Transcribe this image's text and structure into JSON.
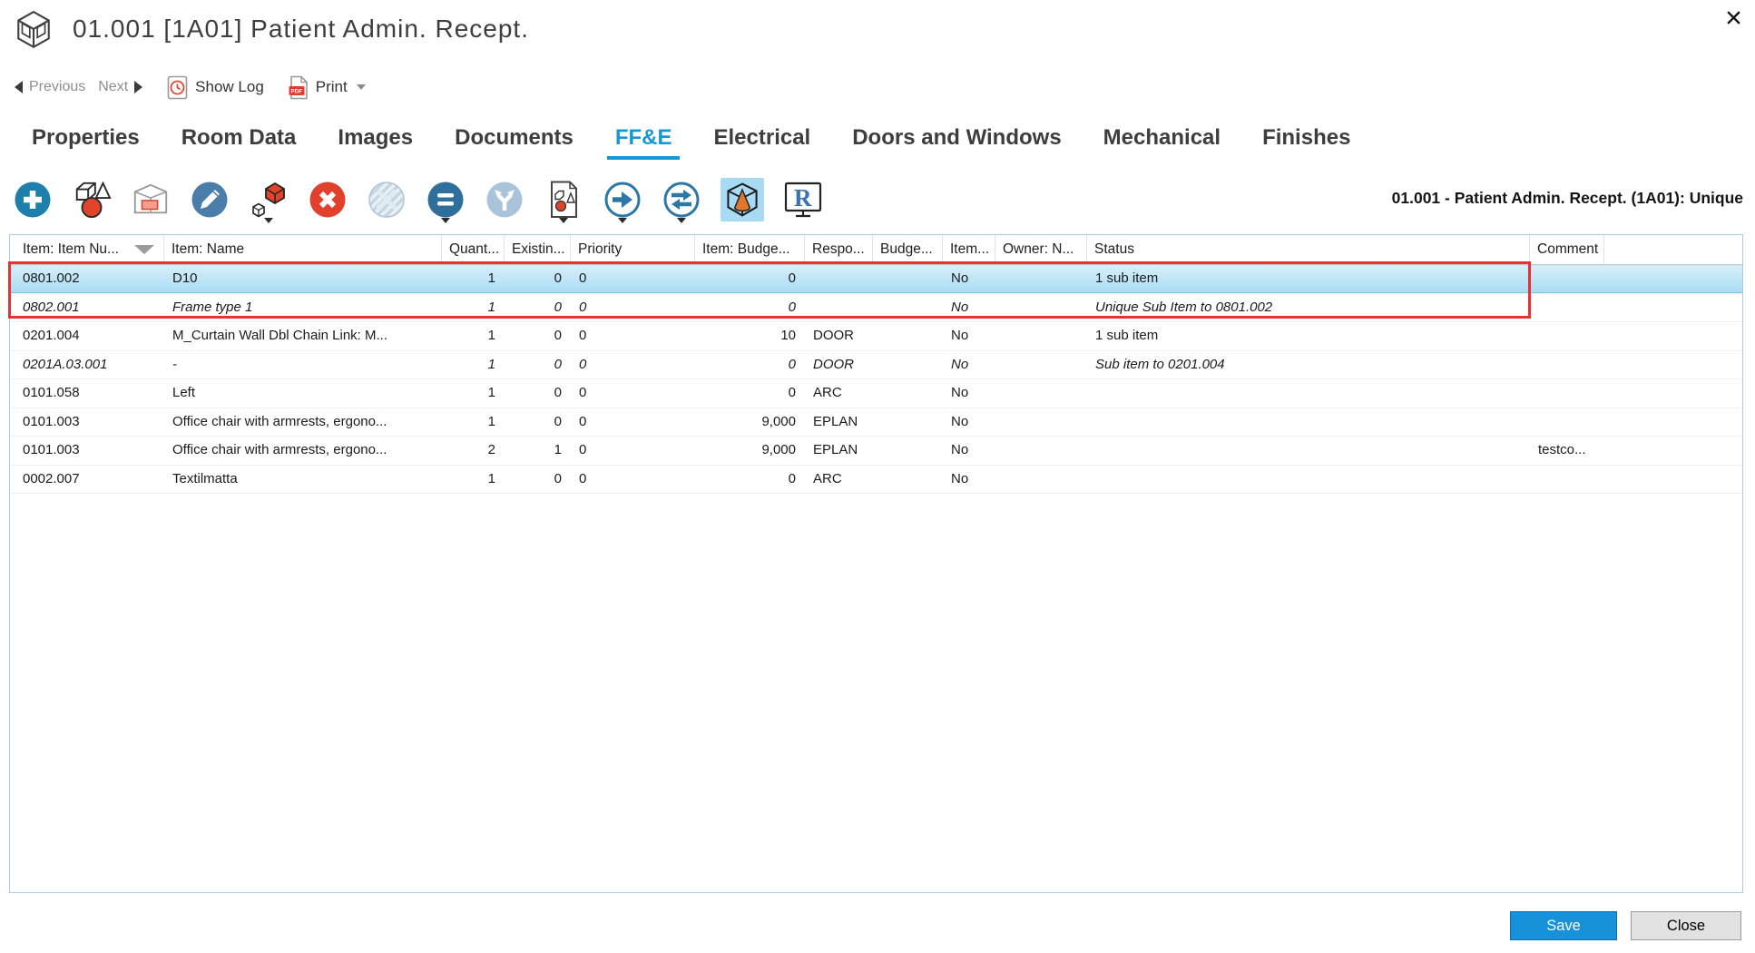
{
  "window": {
    "title": "01.001 [1A01] Patient Admin. Recept."
  },
  "nav": {
    "previous_label": "Previous",
    "next_label": "Next",
    "show_log_label": "Show Log",
    "print_label": "Print"
  },
  "tabs": [
    {
      "label": "Properties",
      "active": false
    },
    {
      "label": "Room Data",
      "active": false
    },
    {
      "label": "Images",
      "active": false
    },
    {
      "label": "Documents",
      "active": false
    },
    {
      "label": "FF&E",
      "active": true
    },
    {
      "label": "Electrical",
      "active": false
    },
    {
      "label": "Doors and Windows",
      "active": false
    },
    {
      "label": "Mechanical",
      "active": false
    },
    {
      "label": "Finishes",
      "active": false
    }
  ],
  "toolbar": {
    "icons": [
      "add-icon",
      "library-shapes-icon",
      "package-icon",
      "edit-icon",
      "copy-sub-item-icon",
      "delete-icon",
      "sphere-hatched-icon",
      "equal-icon",
      "branch-icon",
      "document-shapes-icon",
      "move-next-icon",
      "transfer-icon",
      "view-3d-icon",
      "revit-icon"
    ],
    "active_icon": "view-3d-icon",
    "context_label": "01.001 - Patient Admin. Recept. (1A01): Unique"
  },
  "table": {
    "columns": [
      "Item: Item Nu...",
      "Item: Name",
      "Quant...",
      "Existin...",
      "Priority",
      "Item: Budge...",
      "Respo...",
      "Budge...",
      "Item...",
      "Owner: N...",
      "Status",
      "Comment",
      ""
    ],
    "sorted_column": "Item: Item Nu...",
    "rows": [
      {
        "cells": [
          "0801.002",
          "D10",
          "1",
          "0",
          "0",
          "0",
          "",
          "",
          "No",
          "",
          "1 sub item",
          "",
          ""
        ],
        "selected": true,
        "italic": false
      },
      {
        "cells": [
          "0802.001",
          "Frame type 1",
          "1",
          "0",
          "0",
          "0",
          "",
          "",
          "No",
          "",
          "Unique Sub Item to 0801.002",
          "",
          ""
        ],
        "selected": false,
        "italic": true
      },
      {
        "cells": [
          "0201.004",
          "M_Curtain Wall Dbl Chain Link: M...",
          "1",
          "0",
          "0",
          "10",
          "DOOR",
          "",
          "No",
          "",
          "1 sub item",
          "",
          ""
        ],
        "selected": false,
        "italic": false
      },
      {
        "cells": [
          "0201A.03.001",
          "-",
          "1",
          "0",
          "0",
          "0",
          "DOOR",
          "",
          "No",
          "",
          "Sub item to 0201.004",
          "",
          ""
        ],
        "selected": false,
        "italic": true
      },
      {
        "cells": [
          "0101.058",
          "Left",
          "1",
          "0",
          "0",
          "0",
          "ARC",
          "",
          "No",
          "",
          "",
          "",
          ""
        ],
        "selected": false,
        "italic": false
      },
      {
        "cells": [
          "0101.003",
          "Office chair with armrests, ergono...",
          "1",
          "0",
          "0",
          "9,000",
          "EPLAN",
          "",
          "No",
          "",
          "",
          "",
          ""
        ],
        "selected": false,
        "italic": false
      },
      {
        "cells": [
          "0101.003",
          "Office chair with armrests, ergono...",
          "2",
          "1",
          "0",
          "9,000",
          "EPLAN",
          "",
          "No",
          "",
          "",
          "testco...",
          ""
        ],
        "selected": false,
        "italic": false
      },
      {
        "cells": [
          "0002.007",
          "Textilmatta",
          "1",
          "0",
          "0",
          "0",
          "ARC",
          "",
          "No",
          "",
          "",
          "",
          ""
        ],
        "selected": false,
        "italic": false
      }
    ]
  },
  "footer": {
    "save_label": "Save",
    "close_label": "Close"
  },
  "colors": {
    "accent": "#1797d6",
    "selection_top": "#d7effa",
    "selection_bottom": "#a8dcf4",
    "highlight_red": "#e93230",
    "save_button": "#1791d9",
    "icon_red": "#e0452c",
    "icon_blue": "#1d7fab"
  }
}
